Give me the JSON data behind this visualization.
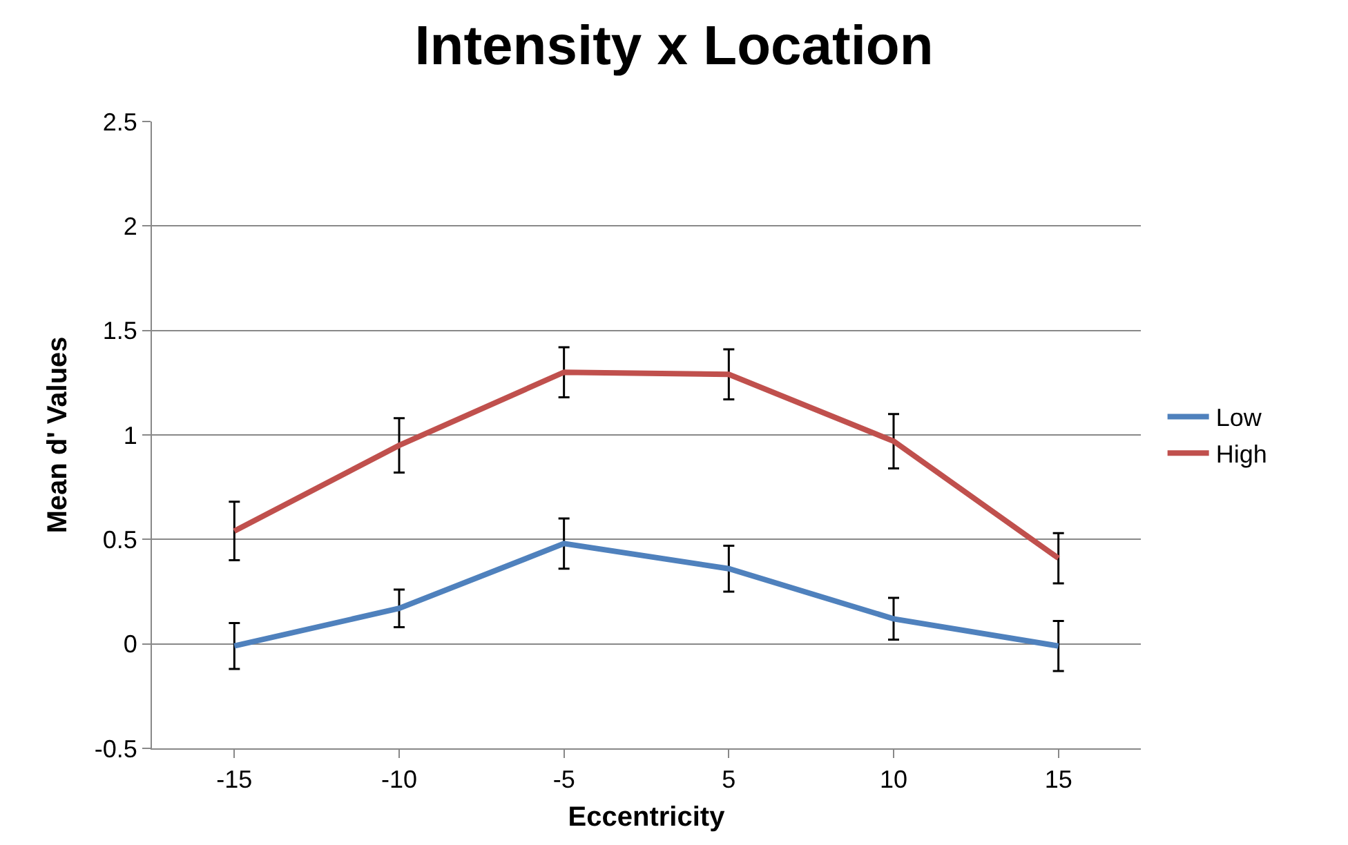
{
  "chart_data": {
    "type": "line",
    "title": "Intensity x Location",
    "xlabel": "Eccentricity",
    "ylabel": "Mean d' Values",
    "categories": [
      "-15",
      "-10",
      "-5",
      "5",
      "10",
      "15"
    ],
    "series": [
      {
        "name": "Low",
        "color": "#4f81bd",
        "values": [
          -0.01,
          0.17,
          0.48,
          0.36,
          0.12,
          -0.01
        ],
        "errors": [
          0.11,
          0.09,
          0.12,
          0.11,
          0.1,
          0.12
        ]
      },
      {
        "name": "High",
        "color": "#c0504d",
        "values": [
          0.54,
          0.95,
          1.3,
          1.29,
          0.97,
          0.41
        ],
        "errors": [
          0.14,
          0.13,
          0.12,
          0.12,
          0.13,
          0.12
        ]
      }
    ],
    "ylim": [
      -0.5,
      2.5
    ],
    "yticks": [
      -0.5,
      0,
      0.5,
      1,
      1.5,
      2,
      2.5
    ],
    "grid": "y",
    "legend": "right",
    "marker": "none",
    "line_style": "solid"
  }
}
